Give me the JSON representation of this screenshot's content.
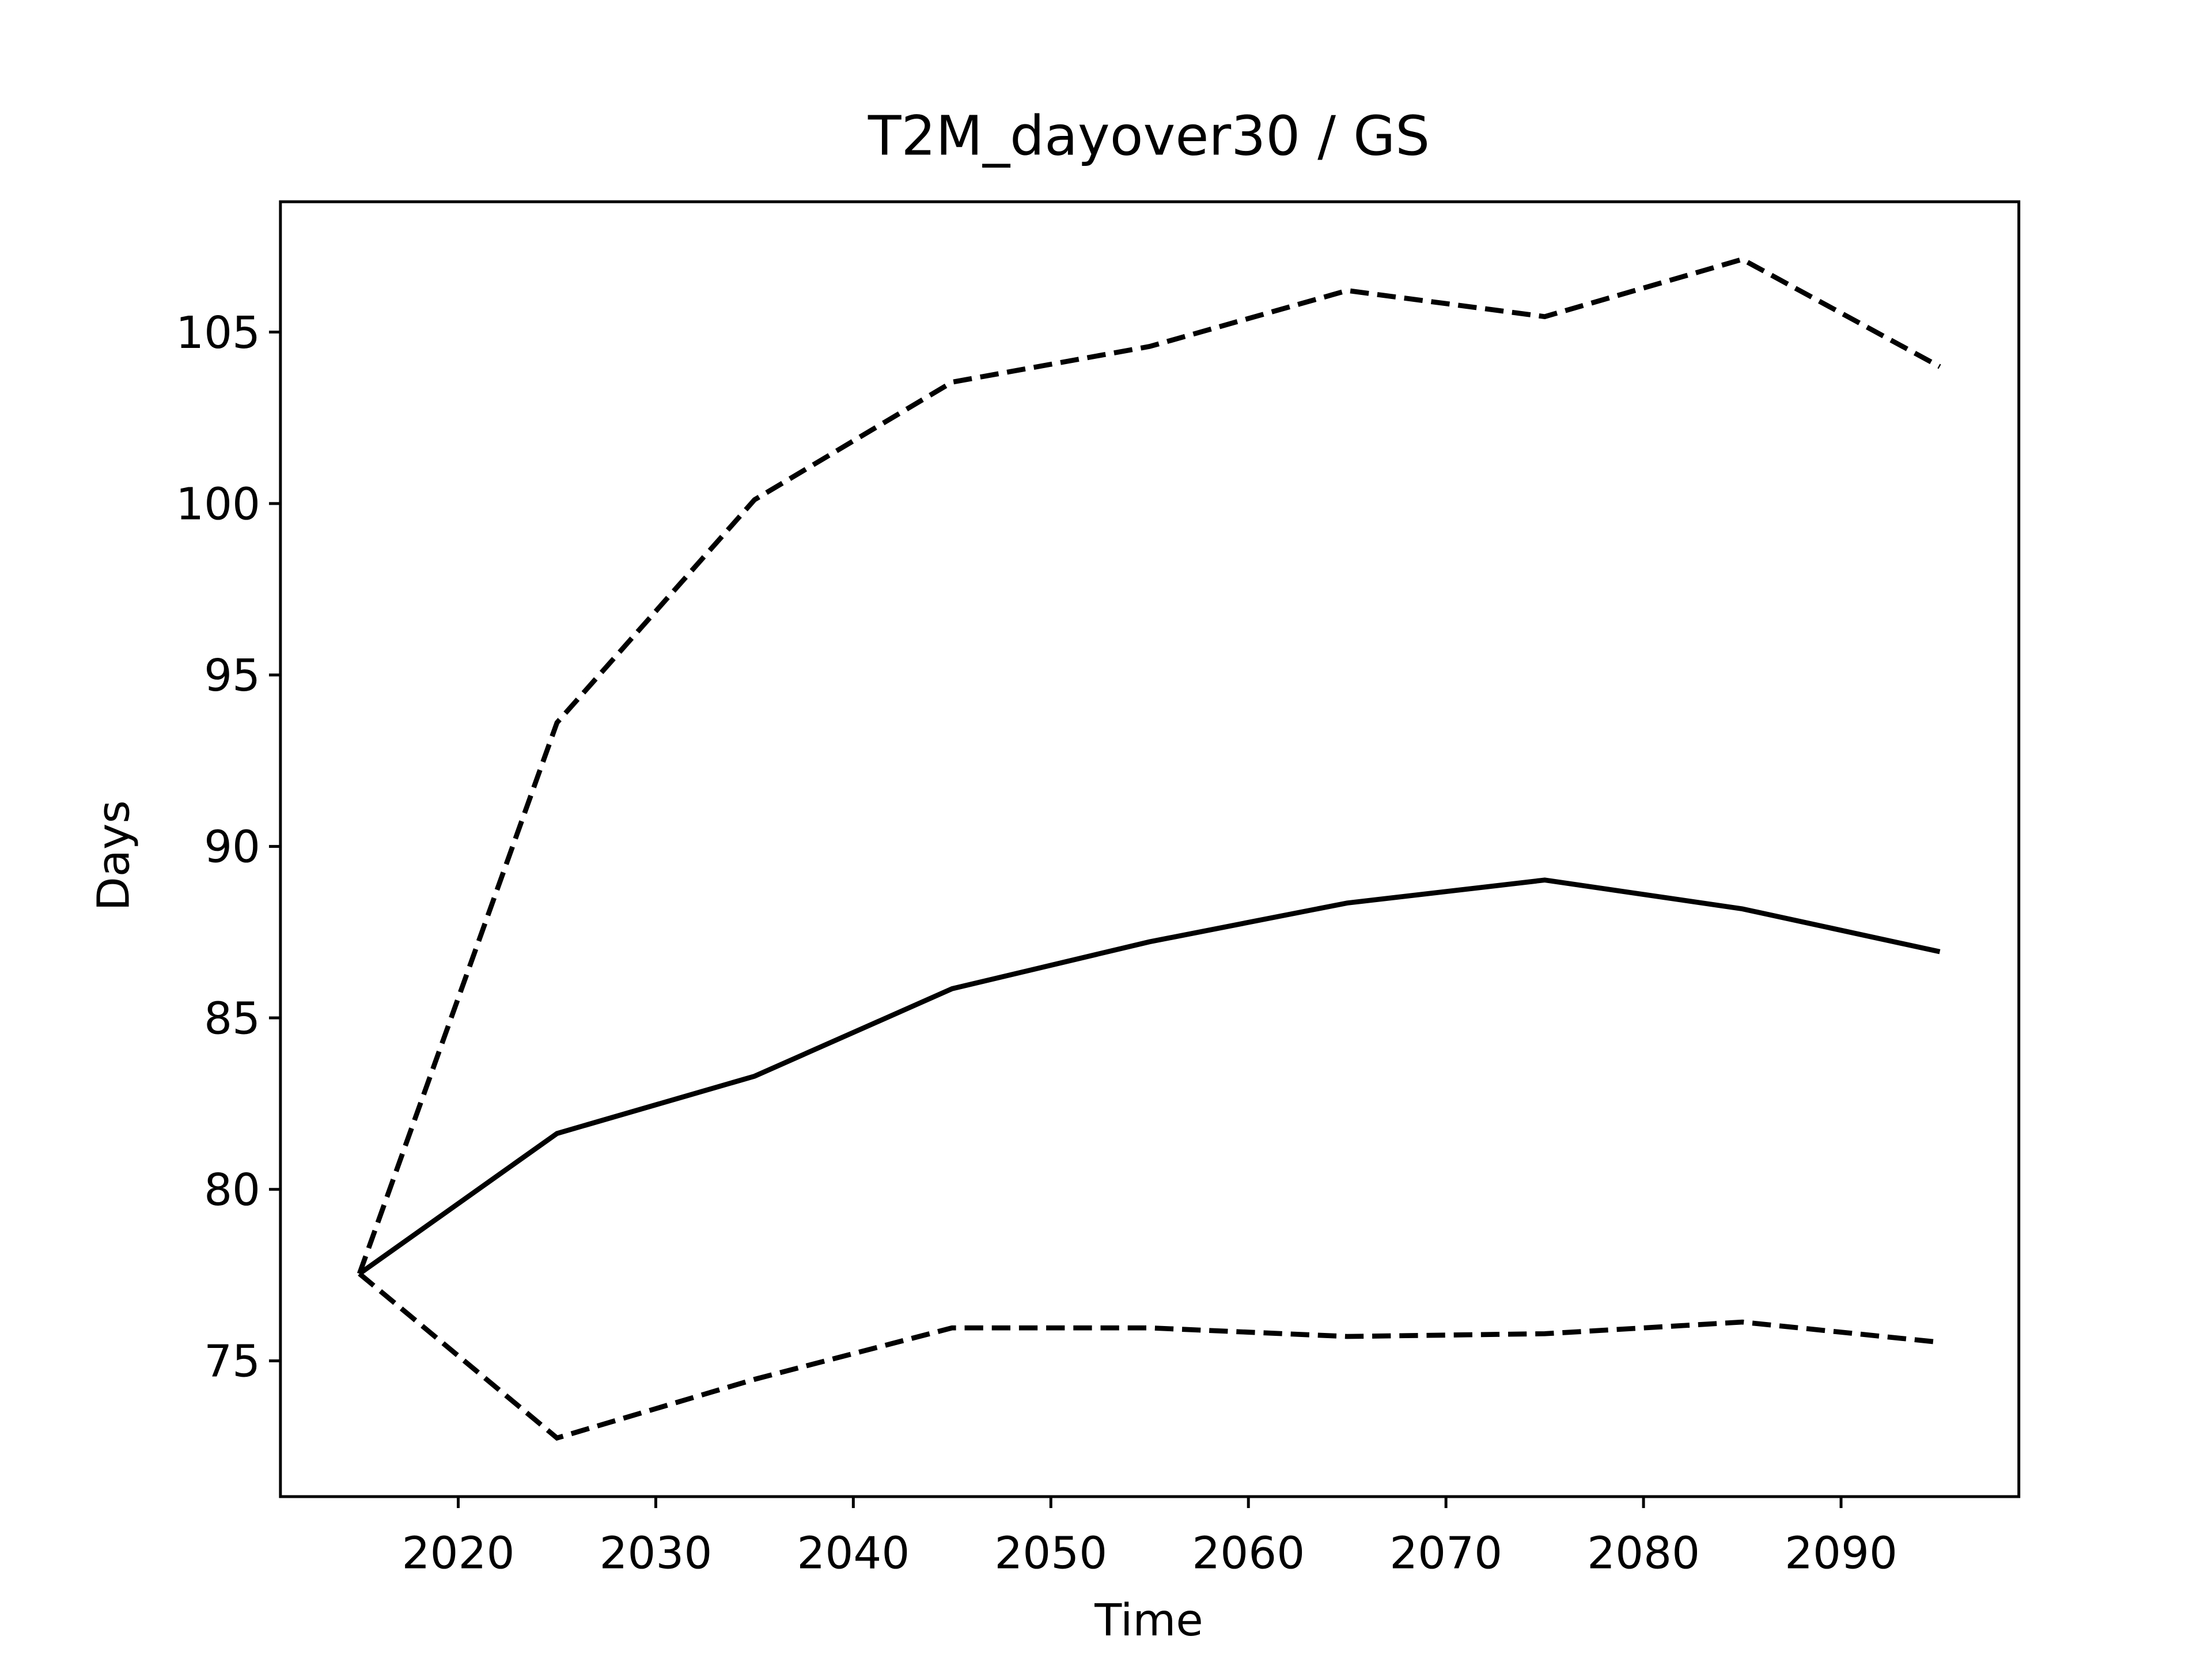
{
  "chart_data": {
    "type": "line",
    "title": "T2M_dayover30 / GS",
    "x_label": "Time",
    "y_label": "Days",
    "x": [
      2015,
      2025,
      2035,
      2045,
      2055,
      2065,
      2075,
      2085,
      2095
    ],
    "series": [
      {
        "color": "#000000",
        "dashed": false,
        "values": [
          77.54,
          81.63,
          83.3,
          85.85,
          87.22,
          88.35,
          89.02,
          88.18,
          86.93
        ]
      },
      {
        "color": "#000000",
        "dashed": true,
        "values": [
          77.54,
          93.61,
          100.11,
          103.54,
          104.58,
          106.21,
          105.45,
          107.12,
          103.99
        ]
      },
      {
        "color": "#000000",
        "dashed": true,
        "values": [
          77.54,
          72.75,
          74.46,
          75.96,
          75.96,
          75.71,
          75.79,
          76.13,
          75.54
        ]
      }
    ],
    "xlim": [
      2011,
      2099
    ],
    "ylim": [
      71.04,
      108.8
    ],
    "xticks": [
      2020,
      2030,
      2040,
      2050,
      2060,
      2070,
      2080,
      2090
    ],
    "yticks": [
      75,
      80,
      85,
      90,
      95,
      100,
      105
    ],
    "grid": false
  }
}
